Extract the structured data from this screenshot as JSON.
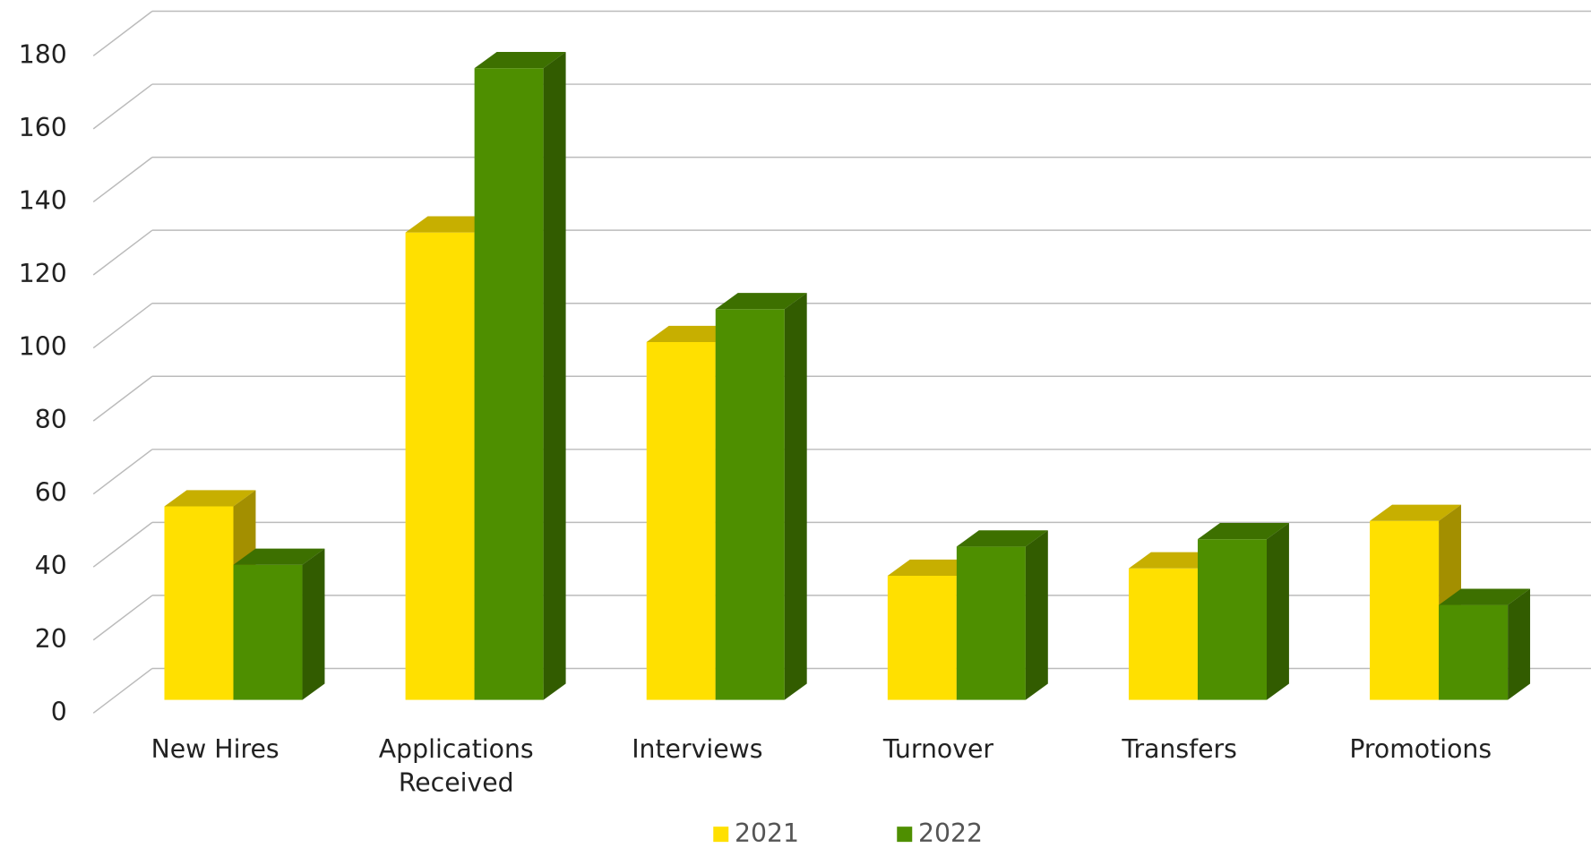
{
  "chart_data": {
    "type": "bar3d",
    "categories": [
      "New Hires",
      "Applications Received",
      "Interviews",
      "Turnover",
      "Transfers",
      "Promotions"
    ],
    "series": [
      {
        "name": "2021",
        "color": "#FFE000",
        "values": [
          53,
          128,
          98,
          34,
          36,
          49
        ]
      },
      {
        "name": "2022",
        "color": "#4E8F00",
        "values": [
          37,
          173,
          107,
          42,
          44,
          26
        ]
      }
    ],
    "ylim": [
      0,
      180
    ],
    "yticks": [
      0,
      20,
      40,
      60,
      80,
      100,
      120,
      140,
      160,
      180
    ],
    "grid": true,
    "legend": "bottom"
  }
}
